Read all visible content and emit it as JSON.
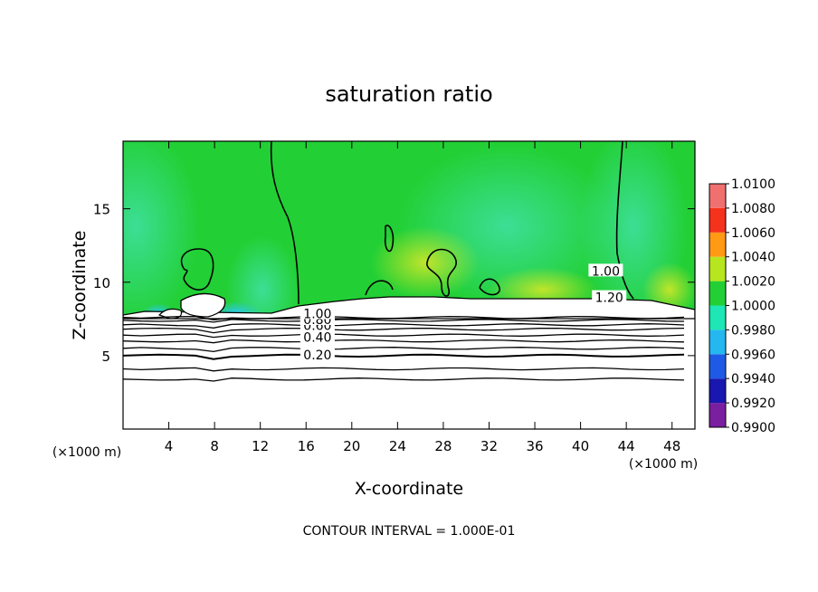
{
  "chart_data": {
    "type": "heatmap",
    "title": "saturation ratio",
    "xlabel": "X-coordinate",
    "ylabel": "Z-coordinate",
    "x_unit_left": "(×1000 m)",
    "x_unit_right": "(×1000 m)",
    "xlim": [
      0,
      50
    ],
    "ylim": [
      0,
      19.6
    ],
    "xticks": [
      4,
      8,
      12,
      16,
      20,
      24,
      28,
      32,
      36,
      40,
      44,
      48
    ],
    "yticks": [
      5,
      10,
      15
    ],
    "footer": "CONTOUR INTERVAL = 1.000E-01",
    "colorbar": {
      "levels": [
        "0.9900",
        "0.9920",
        "0.9940",
        "0.9960",
        "0.9980",
        "1.0000",
        "1.0020",
        "1.0040",
        "1.0060",
        "1.0080",
        "1.0100"
      ],
      "colors": [
        "#7a1fa0",
        "#1a16b0",
        "#1e5ae6",
        "#25b7f0",
        "#1ee6b4",
        "#22d035",
        "#b8e61e",
        "#ff9a14",
        "#f5321c",
        "#f07070"
      ]
    },
    "contour_labels": [
      {
        "text": "0.20",
        "x": 17,
        "z": 5.0
      },
      {
        "text": "0.40",
        "x": 17,
        "z": 6.2
      },
      {
        "text": "0.60",
        "x": 17,
        "z": 7.0
      },
      {
        "text": "0.80",
        "x": 17,
        "z": 7.4
      },
      {
        "text": "1.00",
        "x": 17,
        "z": 7.8
      },
      {
        "text": "1.00",
        "x": 42.2,
        "z": 10.7
      },
      {
        "text": "1.20",
        "x": 42.5,
        "z": 8.9
      }
    ],
    "stable_layer_contour_heights": [
      3.4,
      4.1,
      5.0,
      5.5,
      6.0,
      6.4,
      6.8,
      7.1,
      7.4,
      7.6
    ],
    "saturated_region_top": 8.5
  }
}
